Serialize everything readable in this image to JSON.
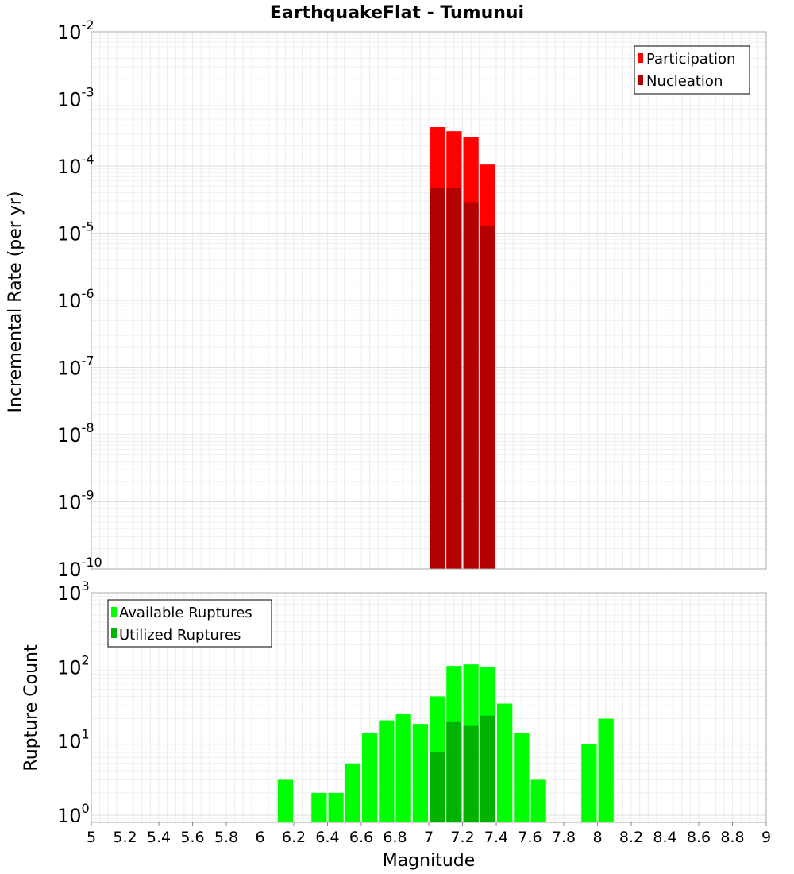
{
  "chart_data": [
    {
      "type": "bar",
      "title": "EarthquakeFlat - Tumunui",
      "ylabel": "Incremental Rate (per yr)",
      "xlabel": "",
      "yscale": "log",
      "ylim": [
        1e-10,
        0.01
      ],
      "xlim": [
        5,
        9
      ],
      "y_ticks": [
        {
          "base": "10",
          "exp": "-10",
          "value": 1e-10
        },
        {
          "base": "10",
          "exp": "-9",
          "value": 1e-09
        },
        {
          "base": "10",
          "exp": "-8",
          "value": 1e-08
        },
        {
          "base": "10",
          "exp": "-7",
          "value": 1e-07
        },
        {
          "base": "10",
          "exp": "-6",
          "value": 1e-06
        },
        {
          "base": "10",
          "exp": "-5",
          "value": 1e-05
        },
        {
          "base": "10",
          "exp": "-4",
          "value": 0.0001
        },
        {
          "base": "10",
          "exp": "-3",
          "value": 0.001
        },
        {
          "base": "10",
          "exp": "-2",
          "value": 0.01
        }
      ],
      "legend": {
        "position": "top-right"
      },
      "series": [
        {
          "name": "Participation",
          "color": "#ff0000",
          "x": [
            7.05,
            7.15,
            7.25,
            7.35
          ],
          "values": [
            0.00038,
            0.00033,
            0.00027,
            0.000105
          ]
        },
        {
          "name": "Nucleation",
          "color": "#b30000",
          "x": [
            7.05,
            7.15,
            7.25,
            7.35
          ],
          "values": [
            4.8e-05,
            4.7e-05,
            2.9e-05,
            1.3e-05
          ]
        }
      ]
    },
    {
      "type": "bar",
      "title": "",
      "ylabel": "Rupture Count",
      "xlabel": "Magnitude",
      "yscale": "log",
      "ylim": [
        0.8,
        1000
      ],
      "xlim": [
        5,
        9
      ],
      "x_ticks": [
        "5",
        "5.2",
        "5.4",
        "5.6",
        "5.8",
        "6",
        "6.2",
        "6.4",
        "6.6",
        "6.8",
        "7",
        "7.2",
        "7.4",
        "7.6",
        "7.8",
        "8",
        "8.2",
        "8.4",
        "8.6",
        "8.8",
        "9"
      ],
      "y_ticks": [
        {
          "base": "10",
          "exp": "0",
          "value": 1
        },
        {
          "base": "10",
          "exp": "1",
          "value": 10
        },
        {
          "base": "10",
          "exp": "2",
          "value": 100
        },
        {
          "base": "10",
          "exp": "3",
          "value": 1000
        }
      ],
      "legend": {
        "position": "top-left"
      },
      "series": [
        {
          "name": "Available Ruptures",
          "color": "#00ff00",
          "x": [
            6.15,
            6.35,
            6.45,
            6.55,
            6.65,
            6.75,
            6.85,
            6.95,
            7.05,
            7.15,
            7.25,
            7.35,
            7.45,
            7.55,
            7.65,
            7.95,
            8.05
          ],
          "values": [
            3,
            2,
            2,
            5,
            13,
            19,
            23,
            17,
            40,
            103,
            108,
            100,
            32,
            13,
            3,
            9,
            20
          ]
        },
        {
          "name": "Utilized Ruptures",
          "color": "#00b300",
          "x": [
            7.05,
            7.15,
            7.25,
            7.35
          ],
          "values": [
            7,
            18,
            16,
            22
          ]
        }
      ]
    }
  ]
}
